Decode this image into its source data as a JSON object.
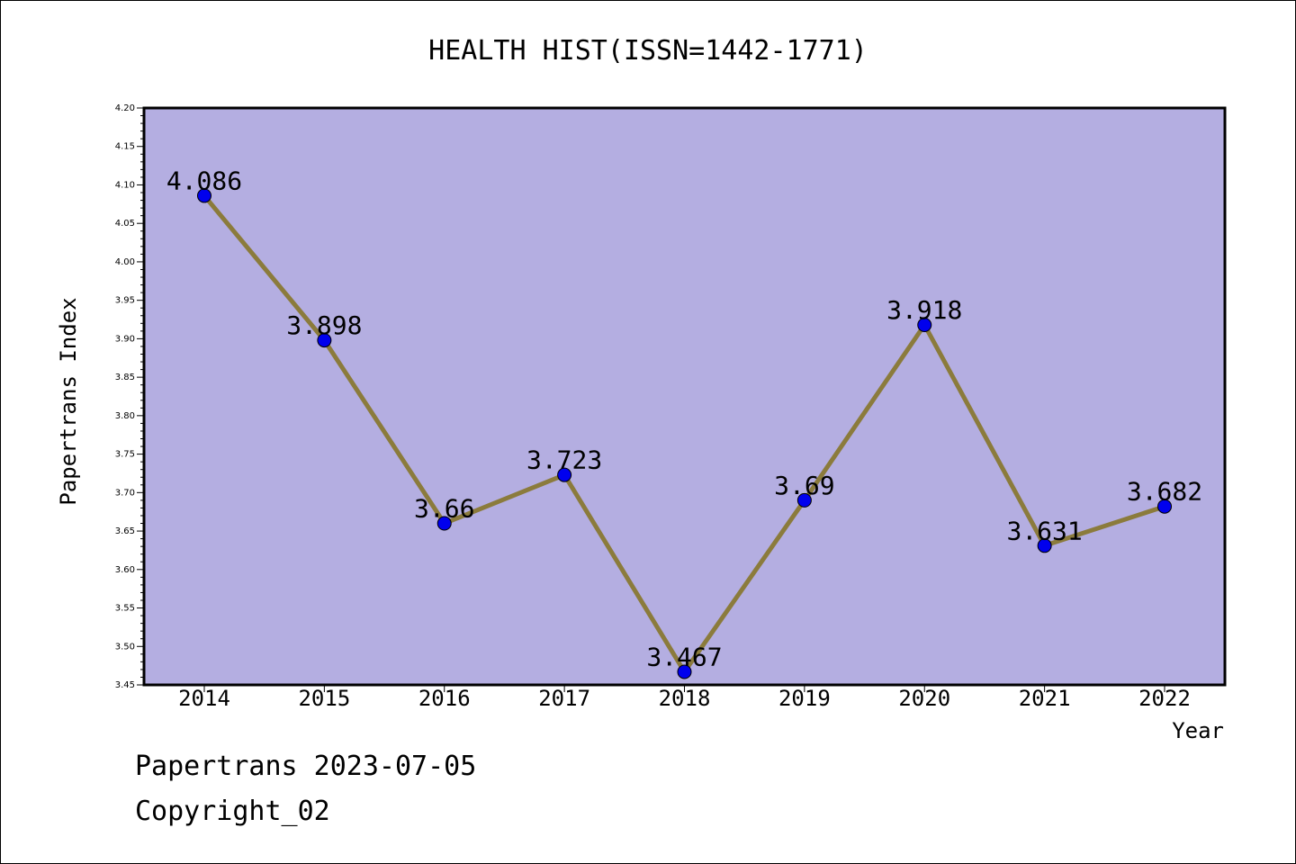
{
  "chart_data": {
    "type": "line",
    "title": "HEALTH HIST(ISSN=1442-1771)",
    "xlabel": "Year",
    "ylabel": "Papertrans Index",
    "categories": [
      "2014",
      "2015",
      "2016",
      "2017",
      "2018",
      "2019",
      "2020",
      "2021",
      "2022"
    ],
    "series": [
      {
        "values": [
          4.086,
          3.898,
          3.66,
          3.723,
          3.467,
          3.69,
          3.918,
          3.631,
          3.682
        ],
        "value_labels": [
          "4.086",
          "3.898",
          "3.66",
          "3.723",
          "3.467",
          "3.69",
          "3.918",
          "3.631",
          "3.682"
        ]
      }
    ],
    "ylim": [
      3.45,
      4.2
    ],
    "yticks": [
      "3.45",
      "3.50",
      "3.55",
      "3.60",
      "3.65",
      "3.70",
      "3.75",
      "3.80",
      "3.85",
      "3.90",
      "3.95",
      "4.00",
      "4.05",
      "4.10",
      "4.15",
      "4.20"
    ],
    "grid": false,
    "legend": "none",
    "colors": {
      "plot_background": "#b4aee1",
      "line": "#8b7b3c",
      "marker": "#0000ee"
    }
  },
  "footer": {
    "line1": "Papertrans 2023-07-05",
    "line2": "Copyright_02"
  }
}
